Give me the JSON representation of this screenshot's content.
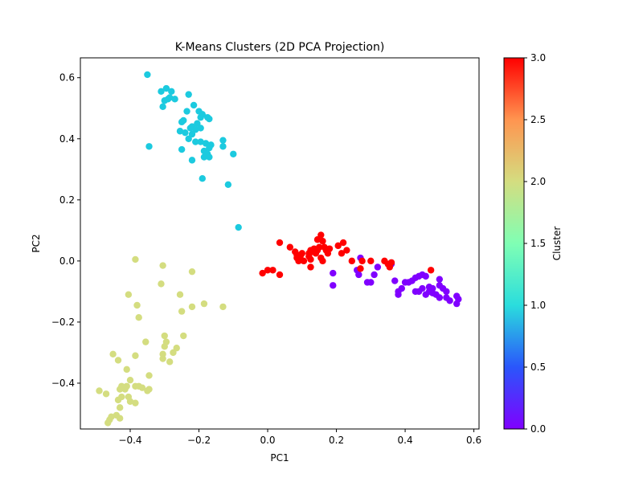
{
  "chart_data": {
    "type": "scatter",
    "title": "K-Means Clusters (2D PCA Projection)",
    "xlabel": "PC1",
    "ylabel": "PC2",
    "xlim": [
      -0.545,
      0.615
    ],
    "ylim": [
      -0.55,
      0.665
    ],
    "xticks": [
      -0.4,
      -0.2,
      0.0,
      0.2,
      0.4,
      0.6
    ],
    "xtick_labels": [
      "−0.4",
      "−0.2",
      "0.0",
      "0.2",
      "0.4",
      "0.6"
    ],
    "yticks": [
      -0.4,
      -0.2,
      0.0,
      0.2,
      0.4,
      0.6
    ],
    "ytick_labels": [
      "−0.4",
      "−0.2",
      "0.0",
      "0.2",
      "0.4",
      "0.6"
    ],
    "grid": false,
    "colorbar": {
      "label": "Cluster",
      "colormap": "rainbow",
      "range": [
        0.0,
        3.0
      ],
      "ticks": [
        0.0,
        0.5,
        1.0,
        1.5,
        2.0,
        2.5,
        3.0
      ],
      "tick_labels": [
        "0.0",
        "0.5",
        "1.0",
        "1.5",
        "2.0",
        "2.5",
        "3.0"
      ]
    },
    "series": [
      {
        "cluster": 0,
        "color": "#8000ff",
        "points": [
          [
            0.19,
            -0.04
          ],
          [
            0.19,
            -0.08
          ],
          [
            0.26,
            -0.03
          ],
          [
            0.27,
            0.01
          ],
          [
            0.265,
            -0.045
          ],
          [
            0.29,
            -0.07
          ],
          [
            0.3,
            -0.07
          ],
          [
            0.31,
            -0.045
          ],
          [
            0.32,
            -0.02
          ],
          [
            0.36,
            -0.01
          ],
          [
            0.37,
            -0.065
          ],
          [
            0.38,
            -0.1
          ],
          [
            0.39,
            -0.09
          ],
          [
            0.38,
            -0.11
          ],
          [
            0.4,
            -0.07
          ],
          [
            0.42,
            -0.065
          ],
          [
            0.43,
            -0.1
          ],
          [
            0.44,
            -0.05
          ],
          [
            0.45,
            -0.09
          ],
          [
            0.44,
            -0.1
          ],
          [
            0.46,
            -0.11
          ],
          [
            0.47,
            -0.1
          ],
          [
            0.46,
            -0.05
          ],
          [
            0.48,
            -0.09
          ],
          [
            0.49,
            -0.11
          ],
          [
            0.5,
            -0.06
          ],
          [
            0.5,
            -0.08
          ],
          [
            0.51,
            -0.09
          ],
          [
            0.52,
            -0.1
          ],
          [
            0.5,
            -0.12
          ],
          [
            0.52,
            -0.12
          ],
          [
            0.53,
            -0.13
          ],
          [
            0.55,
            -0.115
          ],
          [
            0.555,
            -0.125
          ],
          [
            0.55,
            -0.14
          ],
          [
            0.45,
            -0.045
          ],
          [
            0.47,
            -0.085
          ],
          [
            0.41,
            -0.07
          ],
          [
            0.43,
            -0.055
          ],
          [
            0.48,
            -0.105
          ]
        ]
      },
      {
        "cluster": 1,
        "color": "#1ccadf",
        "points": [
          [
            -0.35,
            0.61
          ],
          [
            -0.345,
            0.375
          ],
          [
            -0.31,
            0.555
          ],
          [
            -0.295,
            0.565
          ],
          [
            -0.28,
            0.555
          ],
          [
            -0.29,
            0.53
          ],
          [
            -0.3,
            0.525
          ],
          [
            -0.305,
            0.505
          ],
          [
            -0.27,
            0.53
          ],
          [
            -0.285,
            0.535
          ],
          [
            -0.23,
            0.545
          ],
          [
            -0.215,
            0.51
          ],
          [
            -0.2,
            0.49
          ],
          [
            -0.235,
            0.49
          ],
          [
            -0.245,
            0.46
          ],
          [
            -0.25,
            0.455
          ],
          [
            -0.22,
            0.44
          ],
          [
            -0.205,
            0.45
          ],
          [
            -0.195,
            0.47
          ],
          [
            -0.19,
            0.48
          ],
          [
            -0.17,
            0.465
          ],
          [
            -0.175,
            0.47
          ],
          [
            -0.255,
            0.425
          ],
          [
            -0.24,
            0.42
          ],
          [
            -0.225,
            0.435
          ],
          [
            -0.21,
            0.43
          ],
          [
            -0.195,
            0.435
          ],
          [
            -0.23,
            0.4
          ],
          [
            -0.22,
            0.415
          ],
          [
            -0.21,
            0.39
          ],
          [
            -0.195,
            0.39
          ],
          [
            -0.18,
            0.385
          ],
          [
            -0.185,
            0.36
          ],
          [
            -0.175,
            0.35
          ],
          [
            -0.17,
            0.37
          ],
          [
            -0.165,
            0.38
          ],
          [
            -0.25,
            0.365
          ],
          [
            -0.22,
            0.33
          ],
          [
            -0.185,
            0.34
          ],
          [
            -0.17,
            0.34
          ],
          [
            -0.13,
            0.395
          ],
          [
            -0.13,
            0.375
          ],
          [
            -0.1,
            0.35
          ],
          [
            -0.19,
            0.27
          ],
          [
            -0.115,
            0.25
          ],
          [
            -0.085,
            0.11
          ]
        ]
      },
      {
        "cluster": 2,
        "color": "#d4dd80",
        "points": [
          [
            -0.385,
            0.005
          ],
          [
            -0.305,
            -0.015
          ],
          [
            -0.22,
            -0.035
          ],
          [
            -0.31,
            -0.075
          ],
          [
            -0.405,
            -0.11
          ],
          [
            -0.255,
            -0.11
          ],
          [
            -0.13,
            -0.15
          ],
          [
            -0.185,
            -0.14
          ],
          [
            -0.22,
            -0.15
          ],
          [
            -0.38,
            -0.145
          ],
          [
            -0.25,
            -0.165
          ],
          [
            -0.375,
            -0.185
          ],
          [
            -0.245,
            -0.245
          ],
          [
            -0.3,
            -0.245
          ],
          [
            -0.355,
            -0.265
          ],
          [
            -0.295,
            -0.265
          ],
          [
            -0.3,
            -0.28
          ],
          [
            -0.265,
            -0.285
          ],
          [
            -0.305,
            -0.305
          ],
          [
            -0.275,
            -0.3
          ],
          [
            -0.305,
            -0.32
          ],
          [
            -0.285,
            -0.33
          ],
          [
            -0.385,
            -0.31
          ],
          [
            -0.45,
            -0.305
          ],
          [
            -0.435,
            -0.325
          ],
          [
            -0.41,
            -0.355
          ],
          [
            -0.345,
            -0.375
          ],
          [
            -0.4,
            -0.39
          ],
          [
            -0.385,
            -0.41
          ],
          [
            -0.375,
            -0.41
          ],
          [
            -0.365,
            -0.415
          ],
          [
            -0.345,
            -0.42
          ],
          [
            -0.35,
            -0.425
          ],
          [
            -0.41,
            -0.41
          ],
          [
            -0.415,
            -0.42
          ],
          [
            -0.425,
            -0.41
          ],
          [
            -0.43,
            -0.42
          ],
          [
            -0.49,
            -0.425
          ],
          [
            -0.47,
            -0.435
          ],
          [
            -0.405,
            -0.445
          ],
          [
            -0.425,
            -0.445
          ],
          [
            -0.435,
            -0.455
          ],
          [
            -0.4,
            -0.46
          ],
          [
            -0.385,
            -0.465
          ],
          [
            -0.43,
            -0.48
          ],
          [
            -0.455,
            -0.51
          ],
          [
            -0.46,
            -0.52
          ],
          [
            -0.465,
            -0.53
          ],
          [
            -0.44,
            -0.505
          ],
          [
            -0.43,
            -0.515
          ]
        ]
      },
      {
        "cluster": 3,
        "color": "#ff0000",
        "points": [
          [
            -0.015,
            -0.04
          ],
          [
            0.0,
            -0.03
          ],
          [
            0.015,
            -0.03
          ],
          [
            0.035,
            -0.045
          ],
          [
            0.035,
            0.06
          ],
          [
            0.065,
            0.045
          ],
          [
            0.08,
            0.03
          ],
          [
            0.085,
            0.01
          ],
          [
            0.09,
            0.0
          ],
          [
            0.085,
            0.02
          ],
          [
            0.095,
            0.015
          ],
          [
            0.1,
            0.025
          ],
          [
            0.105,
            0.0
          ],
          [
            0.12,
            0.025
          ],
          [
            0.125,
            0.035
          ],
          [
            0.12,
            0.015
          ],
          [
            0.125,
            0.005
          ],
          [
            0.13,
            0.03
          ],
          [
            0.135,
            0.04
          ],
          [
            0.14,
            0.025
          ],
          [
            0.145,
            0.035
          ],
          [
            0.15,
            0.045
          ],
          [
            0.145,
            0.07
          ],
          [
            0.155,
            0.085
          ],
          [
            0.16,
            0.065
          ],
          [
            0.165,
            0.045
          ],
          [
            0.17,
            0.035
          ],
          [
            0.175,
            0.025
          ],
          [
            0.18,
            0.04
          ],
          [
            0.155,
            0.01
          ],
          [
            0.16,
            0.0
          ],
          [
            0.125,
            -0.02
          ],
          [
            0.205,
            0.05
          ],
          [
            0.215,
            0.025
          ],
          [
            0.22,
            0.06
          ],
          [
            0.23,
            0.035
          ],
          [
            0.245,
            0.0
          ],
          [
            0.27,
            -0.025
          ],
          [
            0.275,
            0.0
          ],
          [
            0.3,
            0.0
          ],
          [
            0.34,
            0.0
          ],
          [
            0.355,
            -0.02
          ],
          [
            0.35,
            -0.01
          ],
          [
            0.36,
            -0.005
          ],
          [
            0.475,
            -0.03
          ],
          [
            0.09,
            0.005
          ]
        ]
      }
    ]
  }
}
